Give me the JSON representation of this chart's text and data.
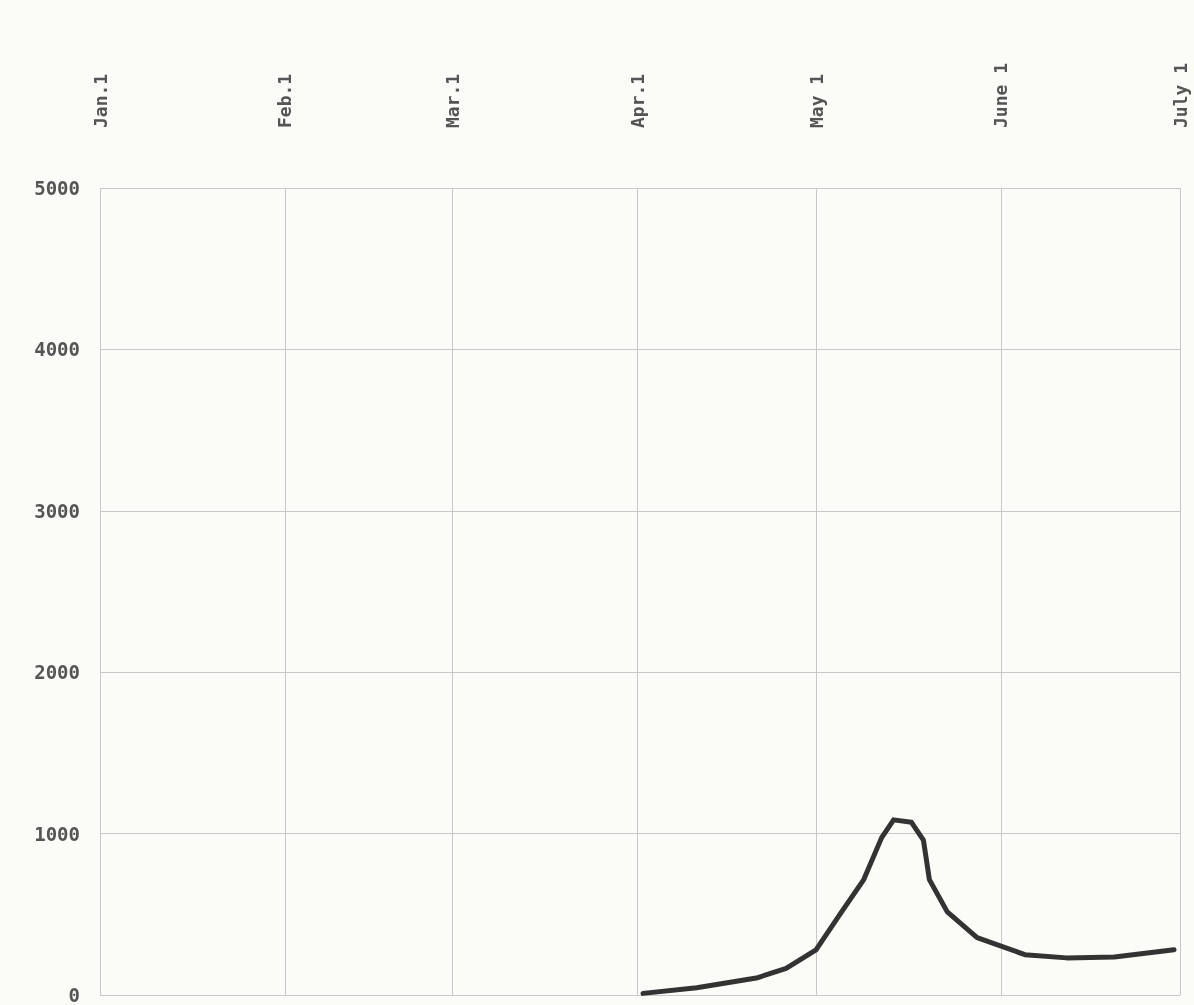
{
  "chart_data": {
    "type": "line",
    "x": [
      "--04-02",
      "--04-11",
      "--04-21",
      "--04-26",
      "--05-01",
      "--05-05",
      "--05-09",
      "--05-12",
      "--05-14",
      "--05-17",
      "--05-19",
      "--05-20",
      "--05-23",
      "--05-28",
      "--06-05",
      "--06-12",
      "--06-20",
      "--06-30"
    ],
    "series": [
      {
        "color": "#333333",
        "values": [
          10,
          45,
          105,
          165,
          280,
          500,
          715,
          975,
          1085,
          1070,
          960,
          715,
          515,
          355,
          250,
          230,
          235,
          280
        ]
      }
    ],
    "xlim": [
      "--01-01",
      "--07-01"
    ],
    "xticks": [
      {
        "value": "--01-01",
        "label": "Jan.1"
      },
      {
        "value": "--02-01",
        "label": "Feb.1"
      },
      {
        "value": "--03-01",
        "label": "Mar.1"
      },
      {
        "value": "--04-01",
        "label": "Apr.1"
      },
      {
        "value": "--05-01",
        "label": "May 1"
      },
      {
        "value": "--06-01",
        "label": "June 1"
      },
      {
        "value": "--07-01",
        "label": "July 1"
      }
    ],
    "ylim": [
      0,
      5000
    ],
    "yticks": [
      0,
      1000,
      2000,
      3000,
      4000,
      5000
    ],
    "grid": true,
    "marker": "none",
    "line_style": "solid"
  }
}
